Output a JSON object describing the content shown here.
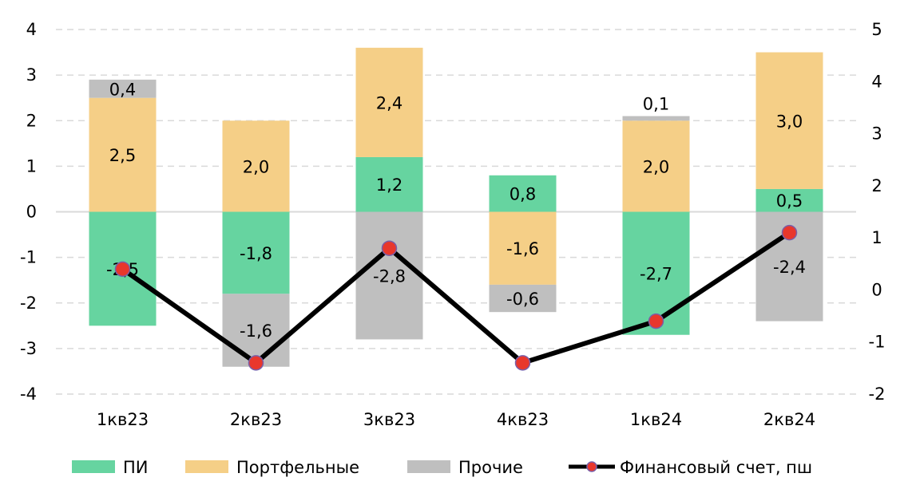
{
  "chart_data": {
    "type": "bar",
    "stacked": true,
    "categories": [
      "1кв23",
      "2кв23",
      "3кв23",
      "4кв23",
      "1кв24",
      "2кв24"
    ],
    "series": [
      {
        "name": "ПИ",
        "color": "#66d4a0",
        "values": [
          -2.5,
          -1.8,
          1.2,
          0.8,
          -2.7,
          0.5
        ],
        "labels": [
          "-2,5",
          "-1,8",
          "1,2",
          "0,8",
          "-2,7",
          "0,5"
        ]
      },
      {
        "name": "Портфельные",
        "color": "#f5cf87",
        "values": [
          2.5,
          2.0,
          2.4,
          -1.6,
          2.0,
          3.0
        ],
        "labels": [
          "2,5",
          "2,0",
          "2,4",
          "-1,6",
          "2,0",
          "3,0"
        ]
      },
      {
        "name": "Прочие",
        "color": "#bfbfbf",
        "values": [
          0.4,
          -1.6,
          -2.8,
          -0.6,
          0.1,
          -2.4
        ],
        "labels": [
          "0,4",
          "-1,6",
          "-2,8",
          "-0,6",
          "0,1",
          "-2,4"
        ]
      }
    ],
    "line_series": {
      "name": "Финансовый счет, пш",
      "axis": "right",
      "color": "#000000",
      "marker_color": "#e8372c",
      "values": [
        0.4,
        -1.4,
        0.8,
        -1.4,
        -0.6,
        1.1
      ]
    },
    "left_axis": {
      "ylim": [
        -4,
        4
      ],
      "ticks": [
        "-4",
        "-3",
        "-2",
        "-1",
        "0",
        "1",
        "2",
        "3",
        "4"
      ]
    },
    "right_axis": {
      "ylim": [
        -2,
        5
      ],
      "ticks": [
        "-2",
        "-1",
        "0",
        "1",
        "2",
        "3",
        "4",
        "5"
      ]
    },
    "grid": "horizontal-dashed",
    "legend": "bottom"
  }
}
